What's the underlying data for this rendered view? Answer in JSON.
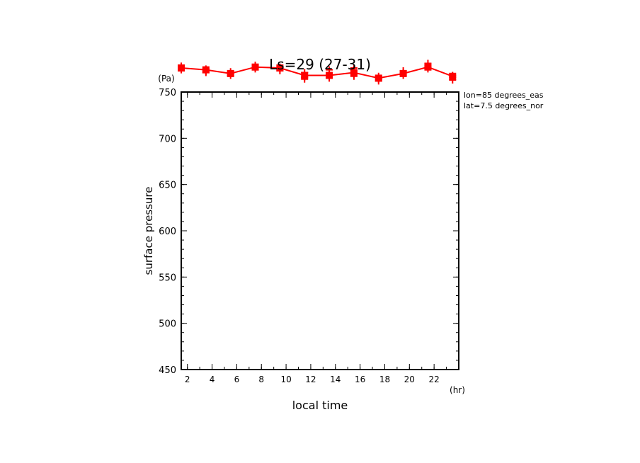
{
  "chart_data": {
    "type": "line",
    "title": "Ls=29 (27-31)",
    "xlabel": "local time",
    "xunit": "(hr)",
    "ylabel": "surface pressure",
    "yunit": "(Pa)",
    "annotations": [
      "lon=85 degrees_eas",
      "lat=7.5 degrees_nor"
    ],
    "xlim": [
      1.5,
      24
    ],
    "ylim": [
      450,
      750
    ],
    "x_ticks": [
      2,
      4,
      6,
      8,
      10,
      12,
      14,
      16,
      18,
      20,
      22
    ],
    "y_ticks": [
      450,
      500,
      550,
      600,
      650,
      700,
      750
    ],
    "grid": false,
    "series": [
      {
        "color": "#ff0000",
        "x": [
          1.5,
          3.5,
          5.5,
          7.5,
          9.5,
          11.5,
          13.5,
          15.5,
          17.5,
          19.5,
          21.5,
          23.5
        ],
        "values": [
          776,
          774,
          770,
          777,
          776,
          768,
          768,
          771,
          765,
          770,
          777,
          767
        ],
        "scatter": [
          [
            1.5,
            778
          ],
          [
            1.5,
            774
          ],
          [
            1.5,
            776
          ],
          [
            3.5,
            775
          ],
          [
            3.5,
            772
          ],
          [
            3.5,
            771
          ],
          [
            5.5,
            772
          ],
          [
            5.5,
            768
          ],
          [
            5.5,
            770
          ],
          [
            7.5,
            779
          ],
          [
            7.5,
            775
          ],
          [
            7.5,
            777
          ],
          [
            9.5,
            777
          ],
          [
            9.5,
            773
          ],
          [
            9.5,
            775
          ],
          [
            11.5,
            771
          ],
          [
            11.5,
            766
          ],
          [
            11.5,
            764
          ],
          [
            13.5,
            774
          ],
          [
            13.5,
            765
          ],
          [
            13.5,
            769
          ],
          [
            15.5,
            776
          ],
          [
            15.5,
            769
          ],
          [
            15.5,
            773
          ],
          [
            15.5,
            767
          ],
          [
            17.5,
            767
          ],
          [
            17.5,
            762
          ],
          [
            17.5,
            764
          ],
          [
            19.5,
            773
          ],
          [
            19.5,
            768
          ],
          [
            19.5,
            771
          ],
          [
            21.5,
            781
          ],
          [
            21.5,
            775
          ],
          [
            21.5,
            778
          ],
          [
            23.5,
            768
          ],
          [
            23.5,
            763
          ],
          [
            23.5,
            766
          ]
        ]
      }
    ]
  }
}
